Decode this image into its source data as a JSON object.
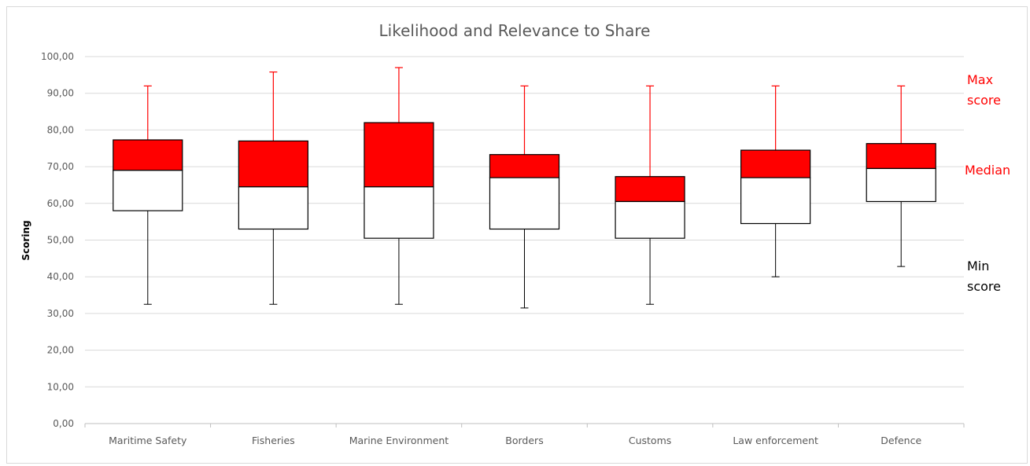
{
  "chart_data": {
    "type": "boxplot",
    "title": "Likelihood and Relevance to Share",
    "ylabel": "Scoring",
    "xlabel": "",
    "ylim": [
      0,
      100
    ],
    "y_ticks": [
      "0,00",
      "10,00",
      "20,00",
      "30,00",
      "40,00",
      "50,00",
      "60,00",
      "70,00",
      "80,00",
      "90,00",
      "100,00"
    ],
    "grid": true,
    "categories": [
      "Maritime Safety",
      "Fisheries",
      "Marine Environment",
      "Borders",
      "Customs",
      "Law enforcement",
      "Defence"
    ],
    "min": [
      32.5,
      32.5,
      32.5,
      31.5,
      32.5,
      40,
      42.8
    ],
    "q1": [
      58,
      53,
      50.5,
      53,
      50.5,
      54.5,
      60.5
    ],
    "median": [
      69,
      64.5,
      64.5,
      67,
      60.5,
      67,
      69.5
    ],
    "q3": [
      77.3,
      77,
      82,
      73.3,
      67.3,
      74.5,
      76.3
    ],
    "max": [
      92,
      95.8,
      97,
      92,
      92,
      92,
      92
    ],
    "colors": {
      "upper_box": "#ff0000",
      "lower_box": "#ffffff",
      "upper_whisker": "#ff0000",
      "lower_whisker": "#000000",
      "grid": "#d9d9d9"
    },
    "annotations": {
      "max_line1": "Max",
      "max_line2": "score",
      "median": "Median",
      "min_line1": "Min",
      "min_line2": "score"
    }
  }
}
